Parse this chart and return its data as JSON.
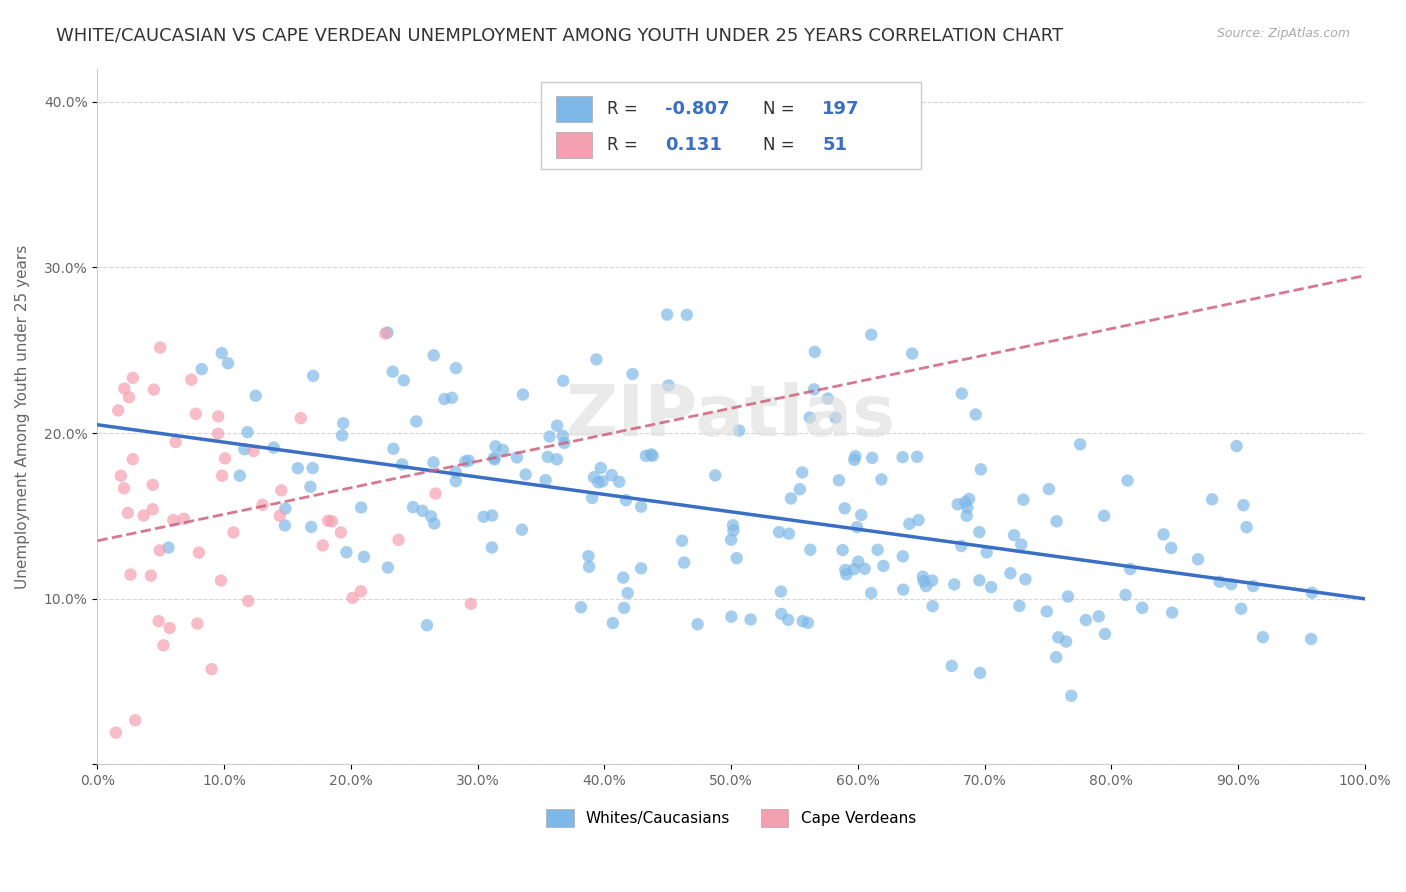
{
  "title": "WHITE/CAUCASIAN VS CAPE VERDEAN UNEMPLOYMENT AMONG YOUTH UNDER 25 YEARS CORRELATION CHART",
  "source": "Source: ZipAtlas.com",
  "ylabel": "Unemployment Among Youth under 25 years",
  "blue_R": -0.807,
  "blue_N": 197,
  "pink_R": 0.131,
  "pink_N": 51,
  "blue_color": "#7EB8E8",
  "pink_color": "#F4A0B0",
  "blue_line_color": "#3A6FC4",
  "pink_line_color": "#D06080",
  "watermark": "ZIPatlas",
  "xlim": [
    0,
    1.0
  ],
  "ylim": [
    0,
    0.42
  ],
  "xticks": [
    0.0,
    0.1,
    0.2,
    0.3,
    0.4,
    0.5,
    0.6,
    0.7,
    0.8,
    0.9,
    1.0
  ],
  "xticklabels": [
    "0.0%",
    "10.0%",
    "20.0%",
    "30.0%",
    "40.0%",
    "50.0%",
    "60.0%",
    "70.0%",
    "80.0%",
    "90.0%",
    "100.0%"
  ],
  "yticks": [
    0.0,
    0.1,
    0.2,
    0.3,
    0.4
  ],
  "yticklabels": [
    "",
    "10.0%",
    "20.0%",
    "30.0%",
    "40.0%"
  ],
  "blue_scatter_seed": 42,
  "pink_scatter_seed": 99,
  "background_color": "#ffffff",
  "grid_color": "#cccccc",
  "title_fontsize": 13,
  "axis_fontsize": 11,
  "tick_fontsize": 10,
  "legend_fontsize": 12,
  "blue_intercept": 0.205,
  "blue_slope": -0.105,
  "pink_intercept": 0.135,
  "pink_slope": 0.16
}
